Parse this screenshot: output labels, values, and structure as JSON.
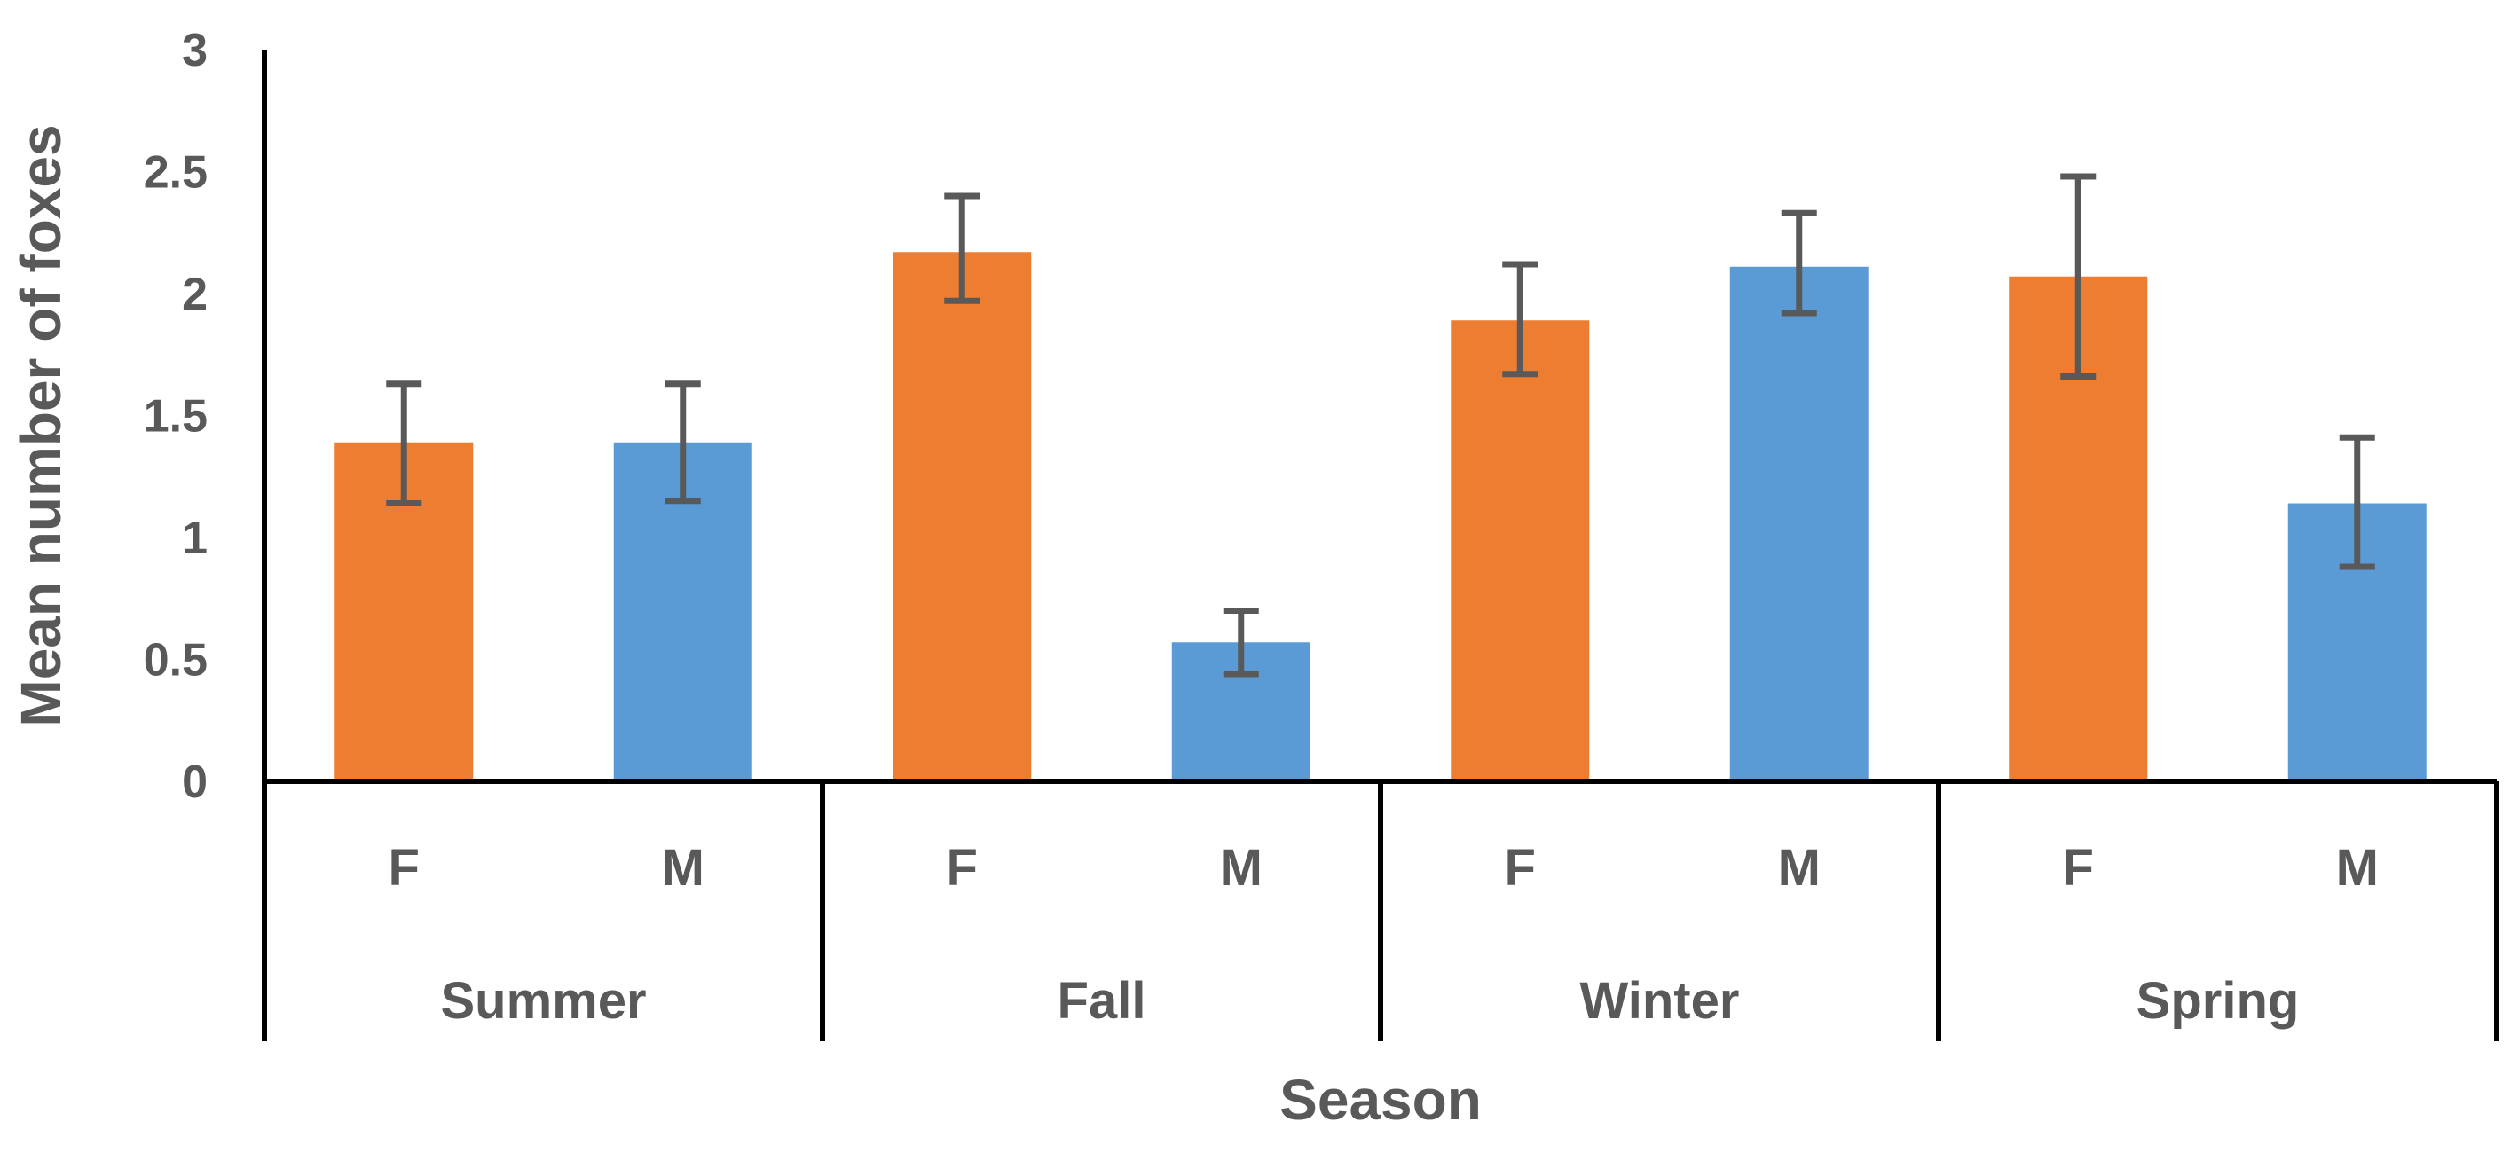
{
  "chart_data": {
    "type": "bar",
    "xlabel": "Season",
    "ylabel": "Mean number of foxes",
    "ylim": [
      0,
      3
    ],
    "yticks": [
      "0",
      "0.5",
      "1",
      "1.5",
      "2",
      "2.5",
      "3"
    ],
    "grid": false,
    "groups": [
      "Summer",
      "Fall",
      "Winter",
      "Spring"
    ],
    "subcategories": [
      "F",
      "M"
    ],
    "colors": {
      "F": "#ED7D31",
      "M": "#5B9BD5",
      "error_bar": "#595959",
      "axis": "#000000"
    },
    "bars": [
      {
        "group": "Summer",
        "sex": "F",
        "value": 1.39,
        "error_low": 1.14,
        "error_high": 1.63
      },
      {
        "group": "Summer",
        "sex": "M",
        "value": 1.39,
        "error_low": 1.15,
        "error_high": 1.63
      },
      {
        "group": "Fall",
        "sex": "F",
        "value": 2.17,
        "error_low": 1.97,
        "error_high": 2.4
      },
      {
        "group": "Fall",
        "sex": "M",
        "value": 0.57,
        "error_low": 0.44,
        "error_high": 0.7
      },
      {
        "group": "Winter",
        "sex": "F",
        "value": 1.89,
        "error_low": 1.67,
        "error_high": 2.12
      },
      {
        "group": "Winter",
        "sex": "M",
        "value": 2.11,
        "error_low": 1.92,
        "error_high": 2.33
      },
      {
        "group": "Spring",
        "sex": "F",
        "value": 2.07,
        "error_low": 1.66,
        "error_high": 2.48
      },
      {
        "group": "Spring",
        "sex": "M",
        "value": 1.14,
        "error_low": 0.88,
        "error_high": 1.41
      }
    ]
  }
}
